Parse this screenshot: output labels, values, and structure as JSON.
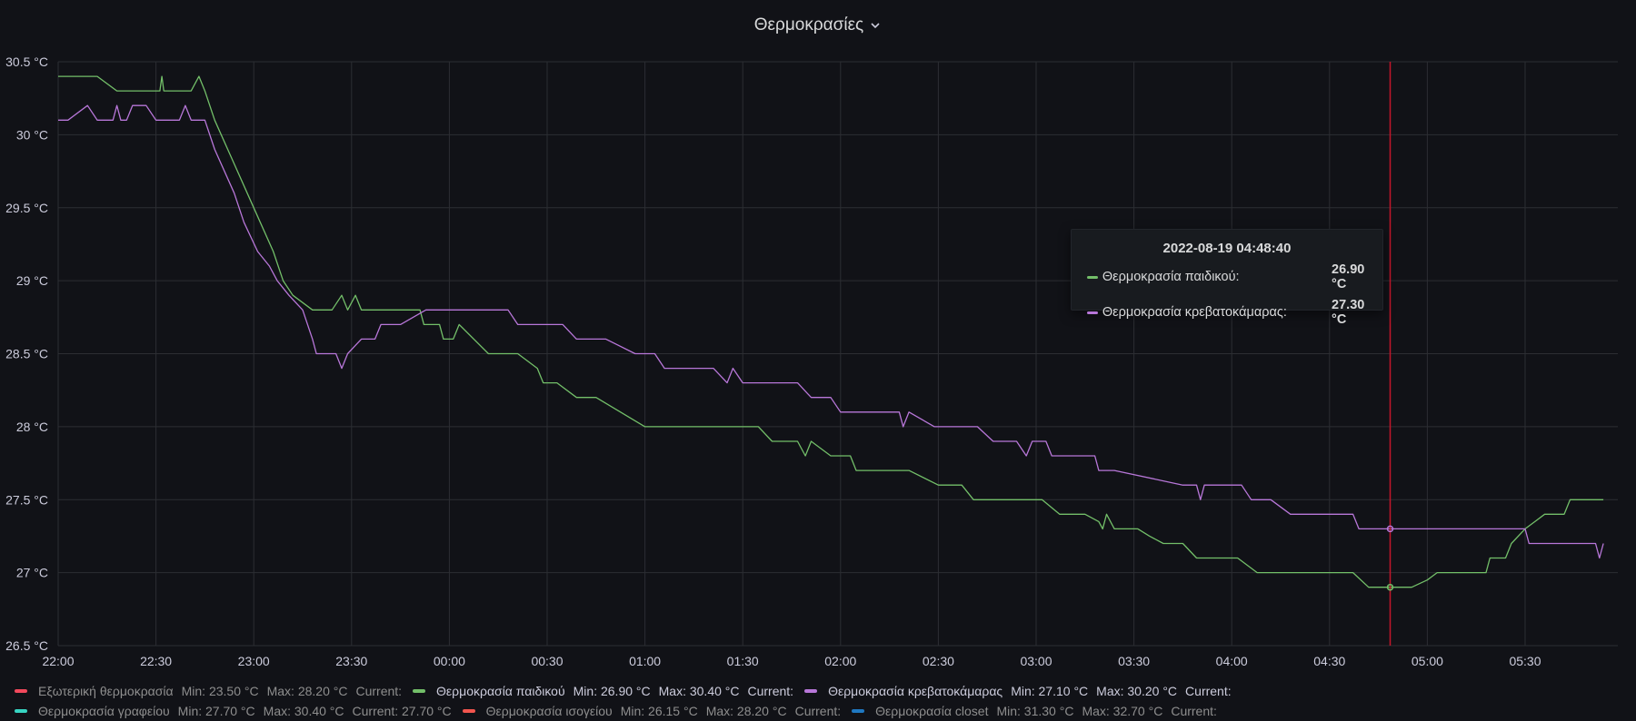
{
  "panel": {
    "title": "Θερμοκρασίες",
    "chevron_icon": "chevron-down-icon"
  },
  "tooltip": {
    "time": "2022-08-19 04:48:40",
    "rows": [
      {
        "name": "Θερμοκρασία παιδικού:",
        "value": "26.90 °C",
        "color": "#73bf69"
      },
      {
        "name": "Θερμοκρασία κρεβατοκάμαρας:",
        "value": "27.30 °C",
        "color": "#b877d9"
      }
    ]
  },
  "legend": [
    {
      "name": "Εξωτερική θερμοκρασία",
      "min": "Min: 23.50 °C",
      "max": "Max: 28.20 °C",
      "current": "Current:",
      "color": "#f2495c",
      "active": false
    },
    {
      "name": "Θερμοκρασία παιδικού",
      "min": "Min: 26.90 °C",
      "max": "Max: 30.40 °C",
      "current": "Current:",
      "color": "#73bf69",
      "active": true
    },
    {
      "name": "Θερμοκρασία κρεβατοκάμαρας",
      "min": "Min: 27.10 °C",
      "max": "Max: 30.20 °C",
      "current": "Current:",
      "color": "#b877d9",
      "active": true
    },
    {
      "name": "Θερμοκρασία γραφείου",
      "min": "Min: 27.70 °C",
      "max": "Max: 30.40 °C",
      "current": "Current: 27.70 °C",
      "color": "#37d4c2",
      "active": false
    },
    {
      "name": "Θερμοκρασία ισογείου",
      "min": "Min: 26.15 °C",
      "max": "Max: 28.20 °C",
      "current": "Current:",
      "color": "#f2554e",
      "active": false
    },
    {
      "name": "Θερμοκρασία closet",
      "min": "Min: 31.30 °C",
      "max": "Max: 32.70 °C",
      "current": "Current:",
      "color": "#1f78c1",
      "active": false
    }
  ],
  "chart_data": {
    "type": "line",
    "title": "Θερμοκρασίες",
    "xlim_hours": [
      22.0,
      29.9
    ],
    "ylim": [
      26.5,
      30.5
    ],
    "grid": true,
    "legend_position": "bottom",
    "cursor_time_hours": 28.81,
    "x_ticks": [
      {
        "h": 22.0,
        "label": "22:00"
      },
      {
        "h": 22.5,
        "label": "22:30"
      },
      {
        "h": 23.0,
        "label": "23:00"
      },
      {
        "h": 23.5,
        "label": "23:30"
      },
      {
        "h": 24.0,
        "label": "00:00"
      },
      {
        "h": 24.5,
        "label": "00:30"
      },
      {
        "h": 25.0,
        "label": "01:00"
      },
      {
        "h": 25.5,
        "label": "01:30"
      },
      {
        "h": 26.0,
        "label": "02:00"
      },
      {
        "h": 26.5,
        "label": "02:30"
      },
      {
        "h": 27.0,
        "label": "03:00"
      },
      {
        "h": 27.5,
        "label": "03:30"
      },
      {
        "h": 28.0,
        "label": "04:00"
      },
      {
        "h": 28.5,
        "label": "04:30"
      },
      {
        "h": 29.0,
        "label": "05:00"
      },
      {
        "h": 29.5,
        "label": "05:30"
      }
    ],
    "y_ticks": [
      {
        "v": 30.5,
        "label": "30.5 °C"
      },
      {
        "v": 30.0,
        "label": "30 °C"
      },
      {
        "v": 29.5,
        "label": "29.5 °C"
      },
      {
        "v": 29.0,
        "label": "29 °C"
      },
      {
        "v": 28.5,
        "label": "28.5 °C"
      },
      {
        "v": 28.0,
        "label": "28 °C"
      },
      {
        "v": 27.5,
        "label": "27.5 °C"
      },
      {
        "v": 27.0,
        "label": "27 °C"
      },
      {
        "v": 26.5,
        "label": "26.5 °C"
      }
    ],
    "series": [
      {
        "name": "Θερμοκρασία παιδικού",
        "color": "#73bf69",
        "points": [
          [
            22.0,
            30.4
          ],
          [
            22.2,
            30.4
          ],
          [
            22.3,
            30.3
          ],
          [
            22.52,
            30.3
          ],
          [
            22.53,
            30.4
          ],
          [
            22.54,
            30.3
          ],
          [
            22.6,
            30.3
          ],
          [
            22.68,
            30.3
          ],
          [
            22.72,
            30.4
          ],
          [
            22.75,
            30.3
          ],
          [
            22.8,
            30.1
          ],
          [
            22.9,
            29.8
          ],
          [
            23.0,
            29.5
          ],
          [
            23.1,
            29.2
          ],
          [
            23.15,
            29.0
          ],
          [
            23.2,
            28.9
          ],
          [
            23.3,
            28.8
          ],
          [
            23.4,
            28.8
          ],
          [
            23.45,
            28.9
          ],
          [
            23.48,
            28.8
          ],
          [
            23.52,
            28.9
          ],
          [
            23.55,
            28.8
          ],
          [
            23.85,
            28.8
          ],
          [
            23.87,
            28.7
          ],
          [
            23.95,
            28.7
          ],
          [
            23.97,
            28.6
          ],
          [
            24.02,
            28.6
          ],
          [
            24.05,
            28.7
          ],
          [
            24.2,
            28.5
          ],
          [
            24.35,
            28.5
          ],
          [
            24.45,
            28.4
          ],
          [
            24.48,
            28.3
          ],
          [
            24.55,
            28.3
          ],
          [
            24.65,
            28.2
          ],
          [
            24.75,
            28.2
          ],
          [
            25.0,
            28.0
          ],
          [
            25.58,
            28.0
          ],
          [
            25.65,
            27.9
          ],
          [
            25.78,
            27.9
          ],
          [
            25.82,
            27.8
          ],
          [
            25.85,
            27.9
          ],
          [
            25.95,
            27.8
          ],
          [
            26.05,
            27.8
          ],
          [
            26.08,
            27.7
          ],
          [
            26.35,
            27.7
          ],
          [
            26.5,
            27.6
          ],
          [
            26.62,
            27.6
          ],
          [
            26.68,
            27.5
          ],
          [
            27.03,
            27.5
          ],
          [
            27.12,
            27.4
          ],
          [
            27.25,
            27.4
          ],
          [
            27.32,
            27.35
          ],
          [
            27.34,
            27.3
          ],
          [
            27.36,
            27.4
          ],
          [
            27.4,
            27.3
          ],
          [
            27.52,
            27.3
          ],
          [
            27.58,
            27.25
          ],
          [
            27.65,
            27.2
          ],
          [
            27.75,
            27.2
          ],
          [
            27.82,
            27.1
          ],
          [
            28.03,
            27.1
          ],
          [
            28.13,
            27.0
          ],
          [
            28.62,
            27.0
          ],
          [
            28.7,
            26.9
          ],
          [
            28.92,
            26.9
          ],
          [
            29.0,
            26.95
          ],
          [
            29.05,
            27.0
          ],
          [
            29.3,
            27.0
          ],
          [
            29.32,
            27.1
          ],
          [
            29.4,
            27.1
          ],
          [
            29.43,
            27.2
          ],
          [
            29.5,
            27.3
          ],
          [
            29.55,
            27.35
          ],
          [
            29.6,
            27.4
          ],
          [
            29.7,
            27.4
          ],
          [
            29.73,
            27.5
          ],
          [
            29.9,
            27.5
          ]
        ]
      },
      {
        "name": "Θερμοκρασία κρεβατοκάμαρας",
        "color": "#b877d9",
        "points": [
          [
            22.0,
            30.1
          ],
          [
            22.05,
            30.1
          ],
          [
            22.15,
            30.2
          ],
          [
            22.2,
            30.1
          ],
          [
            22.28,
            30.1
          ],
          [
            22.3,
            30.2
          ],
          [
            22.32,
            30.1
          ],
          [
            22.35,
            30.1
          ],
          [
            22.38,
            30.2
          ],
          [
            22.45,
            30.2
          ],
          [
            22.5,
            30.1
          ],
          [
            22.58,
            30.1
          ],
          [
            22.62,
            30.1
          ],
          [
            22.65,
            30.2
          ],
          [
            22.68,
            30.1
          ],
          [
            22.75,
            30.1
          ],
          [
            22.8,
            29.9
          ],
          [
            22.9,
            29.6
          ],
          [
            22.95,
            29.4
          ],
          [
            23.02,
            29.2
          ],
          [
            23.08,
            29.1
          ],
          [
            23.12,
            29.0
          ],
          [
            23.18,
            28.9
          ],
          [
            23.25,
            28.8
          ],
          [
            23.3,
            28.6
          ],
          [
            23.32,
            28.5
          ],
          [
            23.42,
            28.5
          ],
          [
            23.45,
            28.4
          ],
          [
            23.48,
            28.5
          ],
          [
            23.55,
            28.6
          ],
          [
            23.62,
            28.6
          ],
          [
            23.65,
            28.7
          ],
          [
            23.75,
            28.7
          ],
          [
            23.88,
            28.8
          ],
          [
            24.2,
            28.8
          ],
          [
            24.3,
            28.8
          ],
          [
            24.35,
            28.7
          ],
          [
            24.58,
            28.7
          ],
          [
            24.65,
            28.6
          ],
          [
            24.8,
            28.6
          ],
          [
            24.95,
            28.5
          ],
          [
            25.05,
            28.5
          ],
          [
            25.1,
            28.4
          ],
          [
            25.35,
            28.4
          ],
          [
            25.42,
            28.3
          ],
          [
            25.45,
            28.4
          ],
          [
            25.5,
            28.3
          ],
          [
            25.78,
            28.3
          ],
          [
            25.85,
            28.2
          ],
          [
            25.95,
            28.2
          ],
          [
            26.0,
            28.1
          ],
          [
            26.3,
            28.1
          ],
          [
            26.32,
            28.0
          ],
          [
            26.35,
            28.1
          ],
          [
            26.48,
            28.0
          ],
          [
            26.7,
            28.0
          ],
          [
            26.78,
            27.9
          ],
          [
            26.9,
            27.9
          ],
          [
            26.95,
            27.8
          ],
          [
            26.98,
            27.9
          ],
          [
            27.05,
            27.9
          ],
          [
            27.08,
            27.8
          ],
          [
            27.3,
            27.8
          ],
          [
            27.32,
            27.7
          ],
          [
            27.4,
            27.7
          ],
          [
            27.75,
            27.6
          ],
          [
            27.82,
            27.6
          ],
          [
            27.84,
            27.5
          ],
          [
            27.86,
            27.6
          ],
          [
            27.95,
            27.6
          ],
          [
            28.05,
            27.6
          ],
          [
            28.1,
            27.5
          ],
          [
            28.2,
            27.5
          ],
          [
            28.3,
            27.4
          ],
          [
            28.62,
            27.4
          ],
          [
            28.65,
            27.3
          ],
          [
            29.5,
            27.3
          ],
          [
            29.52,
            27.2
          ],
          [
            29.86,
            27.2
          ],
          [
            29.88,
            27.1
          ],
          [
            29.9,
            27.2
          ]
        ]
      }
    ]
  }
}
